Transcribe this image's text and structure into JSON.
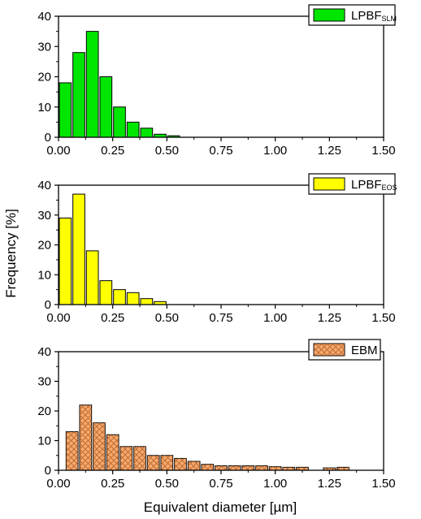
{
  "figure": {
    "ylabel": "Frequency [%]",
    "xlabel_main": "Equivalent diameter [",
    "xlabel_unit": "µm",
    "xlabel_close": "]"
  },
  "chart_data": [
    {
      "type": "bar",
      "legend": {
        "label": "LPBF",
        "subscript": "SLM",
        "placement": "top-right"
      },
      "fill": "#00e600",
      "hatch": false,
      "xlim": [
        0,
        1.5
      ],
      "ylim": [
        0,
        40
      ],
      "xticks": [
        "0.00",
        "0.25",
        "0.50",
        "0.75",
        "1.00",
        "1.25",
        "1.50"
      ],
      "yticks": [
        "0",
        "10",
        "20",
        "30",
        "40"
      ],
      "bin_width": 0.0625,
      "x": [
        0.03125,
        0.09375,
        0.15625,
        0.21875,
        0.28125,
        0.34375,
        0.40625,
        0.46875,
        0.53125
      ],
      "values": [
        18,
        28,
        35,
        20,
        10,
        5,
        3,
        1,
        0.5
      ]
    },
    {
      "type": "bar",
      "legend": {
        "label": "LPBF",
        "subscript": "EOS",
        "placement": "top-right"
      },
      "fill": "#ffff00",
      "hatch": false,
      "xlim": [
        0,
        1.5
      ],
      "ylim": [
        0,
        40
      ],
      "xticks": [
        "0.00",
        "0.25",
        "0.50",
        "0.75",
        "1.00",
        "1.25",
        "1.50"
      ],
      "yticks": [
        "0",
        "10",
        "20",
        "30",
        "40"
      ],
      "bin_width": 0.0625,
      "x": [
        0.03125,
        0.09375,
        0.15625,
        0.21875,
        0.28125,
        0.34375,
        0.40625,
        0.46875
      ],
      "values": [
        29,
        37,
        18,
        8,
        5,
        4,
        2,
        1
      ]
    },
    {
      "type": "bar",
      "legend": {
        "label": "EBM",
        "subscript": "",
        "placement": "top-right"
      },
      "fill": "#f7a86c",
      "hatch": true,
      "xlim": [
        0,
        1.5
      ],
      "ylim": [
        0,
        40
      ],
      "xticks": [
        "0.00",
        "0.25",
        "0.50",
        "0.75",
        "1.00",
        "1.25",
        "1.50"
      ],
      "yticks": [
        "0",
        "10",
        "20",
        "30",
        "40"
      ],
      "bin_width": 0.0625,
      "x": [
        0.0625,
        0.125,
        0.1875,
        0.25,
        0.3125,
        0.375,
        0.4375,
        0.5,
        0.5625,
        0.625,
        0.6875,
        0.75,
        0.8125,
        0.875,
        0.9375,
        1.0,
        1.0625,
        1.125,
        1.25,
        1.3125
      ],
      "values": [
        13,
        22,
        16,
        12,
        8,
        8,
        5,
        5,
        4,
        3,
        2,
        1.5,
        1.5,
        1.5,
        1.5,
        1.2,
        1,
        1,
        0.8,
        1
      ]
    }
  ]
}
